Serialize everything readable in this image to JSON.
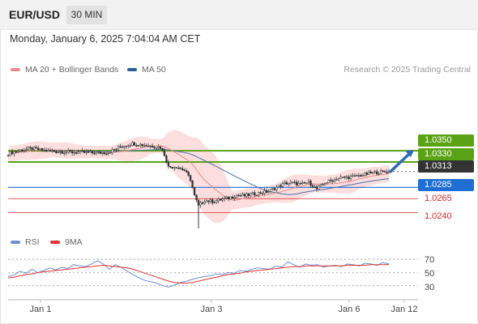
{
  "header": {
    "pair": "EUR/USD",
    "timeframe": "30 MIN"
  },
  "datetime": "Monday, January 6, 2025 7:04:04 AM CET",
  "legend": {
    "ma_bb": "MA 20 + Bollinger Bands",
    "ma50": "MA 50",
    "credit": "Research © 2025 Trading Central"
  },
  "rsi_legend": {
    "rsi": "RSI",
    "ma9": "9MA"
  },
  "colors": {
    "resistance": "#5aa317",
    "support": "#1f6ed4",
    "red_level": "#d92626",
    "current": "#333333",
    "bands": "#fbd3d3",
    "ma20": "#e88a8a",
    "ma50": "#4a6fa5",
    "rsi": "#6b8fd6",
    "rsi_ma": "#e03030",
    "arrow": "#2e6bb5"
  },
  "chart_data": [
    {
      "type": "candlestick",
      "title": "EUR/USD 30 MIN",
      "x_ticks": [
        "Jan 1",
        "Jan 3",
        "Jan 6",
        "Jan 12"
      ],
      "levels": [
        {
          "value": "1.0350",
          "kind": "resistance"
        },
        {
          "value": "1.0330",
          "kind": "resistance"
        },
        {
          "value": "1.0313",
          "kind": "current"
        },
        {
          "value": "1.0285",
          "kind": "support"
        },
        {
          "value": "1.0265",
          "kind": "support-minor"
        },
        {
          "value": "1.0240",
          "kind": "support-minor"
        }
      ],
      "ylim": [
        1.0215,
        1.0445
      ],
      "series": [
        {
          "name": "MA 20 + Bollinger Bands"
        },
        {
          "name": "MA 50"
        }
      ],
      "close_path": [
        [
          0,
          1.0345
        ],
        [
          6,
          1.0351
        ],
        [
          12,
          1.0354
        ],
        [
          20,
          1.0349
        ],
        [
          28,
          1.0348
        ],
        [
          36,
          1.0347
        ],
        [
          44,
          1.0346
        ],
        [
          50,
          1.0347
        ],
        [
          56,
          1.0357
        ],
        [
          62,
          1.0363
        ],
        [
          68,
          1.036
        ],
        [
          72,
          1.0358
        ],
        [
          76,
          1.0356
        ],
        [
          78,
          1.0343
        ],
        [
          80,
          1.0321
        ],
        [
          84,
          1.0322
        ],
        [
          88,
          1.0315
        ],
        [
          91,
          1.0299
        ],
        [
          93,
          1.027
        ],
        [
          95,
          1.0252
        ],
        [
          98,
          1.0262
        ],
        [
          102,
          1.026
        ],
        [
          106,
          1.0263
        ],
        [
          110,
          1.0266
        ],
        [
          114,
          1.0271
        ],
        [
          118,
          1.027
        ],
        [
          122,
          1.0273
        ],
        [
          126,
          1.0275
        ],
        [
          130,
          1.0278
        ],
        [
          134,
          1.0285
        ],
        [
          138,
          1.0292
        ],
        [
          142,
          1.0293
        ],
        [
          146,
          1.029
        ],
        [
          150,
          1.0294
        ],
        [
          154,
          1.0282
        ],
        [
          158,
          1.0293
        ],
        [
          162,
          1.0298
        ],
        [
          166,
          1.0302
        ],
        [
          170,
          1.0303
        ],
        [
          174,
          1.0305
        ],
        [
          178,
          1.0308
        ],
        [
          182,
          1.0311
        ],
        [
          186,
          1.0312
        ],
        [
          190,
          1.0313
        ]
      ],
      "target_arrow": {
        "from": 1.0313,
        "to": 1.035
      }
    },
    {
      "type": "line",
      "title": "RSI",
      "y_ticks": [
        "70",
        "50",
        "30"
      ],
      "ylim": [
        15,
        80
      ],
      "series": [
        {
          "name": "RSI",
          "values": [
            44,
            46,
            52,
            49,
            55,
            50,
            53,
            57,
            54,
            58,
            56,
            62,
            60,
            59,
            63,
            68,
            63,
            55,
            62,
            58,
            52,
            47,
            42,
            38,
            36,
            34,
            30,
            28,
            31,
            35,
            37,
            40,
            42,
            44,
            45,
            48,
            47,
            50,
            49,
            53,
            52,
            55,
            57,
            56,
            55,
            60,
            58,
            66,
            62,
            58,
            63,
            61,
            62,
            58,
            60,
            61,
            59,
            63,
            62,
            60,
            64,
            63,
            61,
            65,
            63
          ]
        },
        {
          "name": "9MA",
          "values": [
            42,
            43,
            45,
            47,
            48,
            50,
            51,
            52,
            53,
            54,
            55,
            56,
            57,
            58,
            59,
            60,
            61,
            60,
            59,
            58,
            57,
            55,
            52,
            49,
            46,
            43,
            40,
            37,
            35,
            34,
            34,
            35,
            37,
            39,
            41,
            43,
            45,
            47,
            48,
            49,
            51,
            52,
            53,
            54,
            55,
            56,
            57,
            58,
            59,
            59,
            60,
            60,
            60,
            60,
            60,
            60,
            60,
            61,
            61,
            61,
            61,
            62,
            62,
            62,
            62
          ]
        }
      ]
    }
  ]
}
